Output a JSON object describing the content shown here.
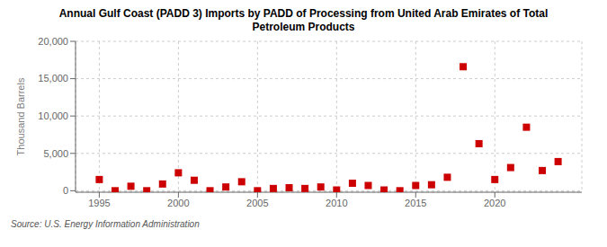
{
  "chart_data": {
    "type": "scatter",
    "title": "Annual Gulf Coast (PADD 3) Imports by PADD of Processing from United Arab Emirates of Total\nPetroleum Products",
    "ylabel": "Thousand Barrels",
    "annotations": [
      "Source: U.S. Energy Information Administration"
    ],
    "x": [
      1995,
      1996,
      1997,
      1998,
      1999,
      2000,
      2001,
      2002,
      2003,
      2004,
      2005,
      2006,
      2007,
      2008,
      2009,
      2010,
      2011,
      2012,
      2013,
      2014,
      2015,
      2016,
      2017,
      2018,
      2019,
      2020,
      2021,
      2022,
      2023,
      2024
    ],
    "values": [
      1500,
      0,
      600,
      0,
      900,
      2400,
      1400,
      0,
      500,
      1200,
      0,
      300,
      400,
      300,
      500,
      100,
      1000,
      700,
      100,
      0,
      700,
      800,
      1800,
      16600,
      6300,
      1500,
      3100,
      8500,
      2700,
      3900
    ],
    "color": "#cc0000",
    "marker": "square",
    "xlim": [
      1993.5,
      2025.5
    ],
    "ylim": [
      -200,
      20000
    ],
    "xticks": [
      1995,
      2000,
      2005,
      2010,
      2015,
      2020
    ],
    "yticks": [
      0,
      {
        "value": 5000,
        "label": "5,000"
      },
      {
        "value": 10000,
        "label": "10,000"
      },
      {
        "value": 15000,
        "label": "15,000"
      },
      {
        "value": 20000,
        "label": "20,000"
      }
    ],
    "grid": true
  }
}
